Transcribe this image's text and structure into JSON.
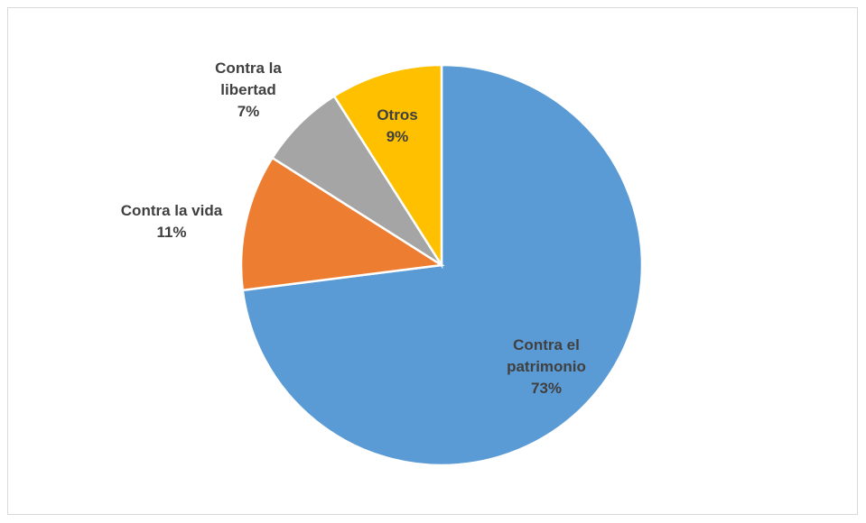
{
  "chart_data": {
    "type": "pie",
    "categories": [
      "Contra el patrimonio",
      "Contra la vida",
      "Contra la libertad",
      "Otros"
    ],
    "values": [
      73,
      11,
      7,
      9
    ],
    "value_labels": [
      "73%",
      "11%",
      "7%",
      "9%"
    ],
    "colors": [
      "#5b9bd5",
      "#ed7d31",
      "#a5a5a5",
      "#ffc000"
    ]
  }
}
